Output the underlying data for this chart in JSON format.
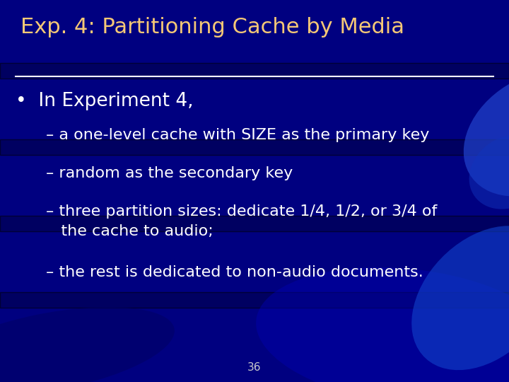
{
  "title": "Exp. 4: Partitioning Cache by Media",
  "title_color": "#F5C876",
  "title_fontsize": 22,
  "bullet_text": "In Experiment 4,",
  "bullet_color": "#FFFFFF",
  "bullet_fontsize": 19,
  "sub_items": [
    "– a one-level cache with SIZE as the primary key",
    "– random as the secondary key",
    "– three partition sizes: dedicate 1/4, 1/2, or 3/4 of\n   the cache to audio;",
    "– the rest is dedicated to non-audio documents."
  ],
  "sub_color": "#FFFFFF",
  "sub_fontsize": 16,
  "bg_color": "#000080",
  "line_color": "#FFFFFF",
  "page_num": "36",
  "page_num_color": "#CCCCCC",
  "page_num_fontsize": 11,
  "figwidth": 7.2,
  "figheight": 5.4,
  "dpi": 100
}
